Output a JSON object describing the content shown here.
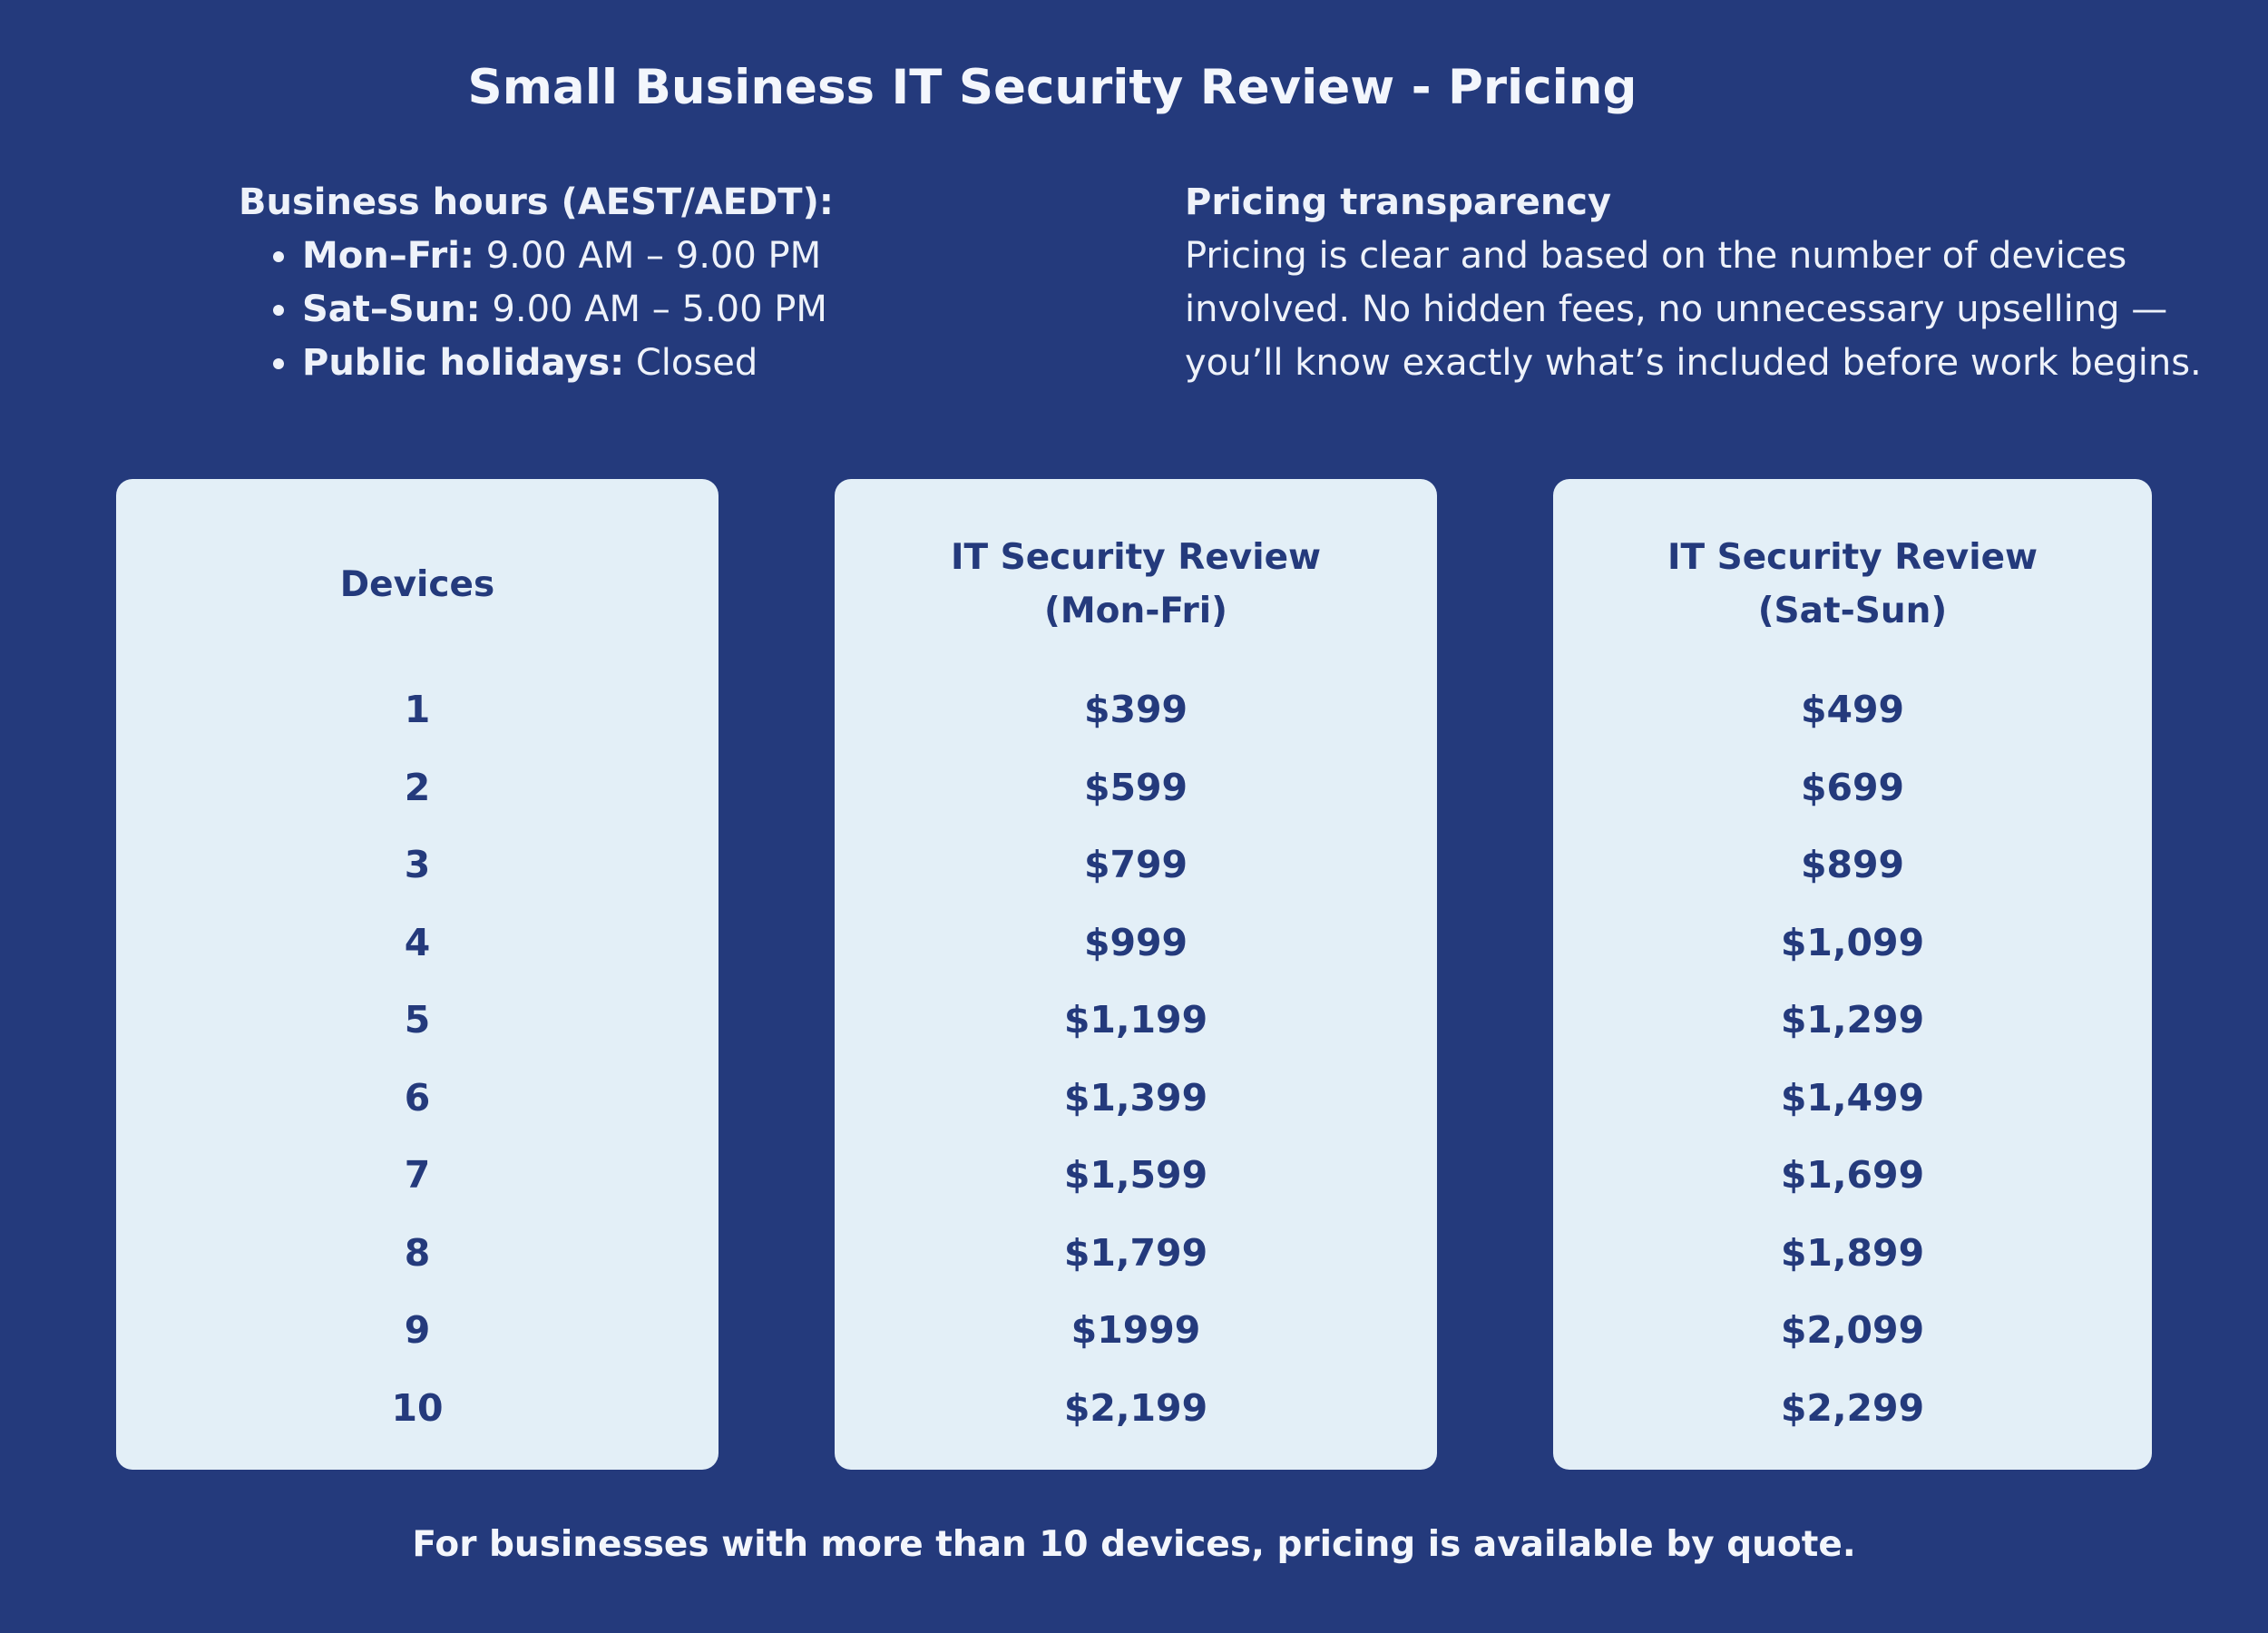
{
  "title": "Small Business IT Security Review - Pricing",
  "hours": {
    "heading": "Business hours (AEST/AEDT):",
    "items": [
      {
        "label": "Mon–Fri:",
        "value": "9.00 AM – 9.00 PM"
      },
      {
        "label": "Sat–Sun:",
        "value": "9.00 AM – 5.00 PM"
      },
      {
        "label": "Public holidays:",
        "value": "Closed"
      }
    ]
  },
  "transparency": {
    "heading": "Pricing transparency",
    "body": "Pricing is clear and based on the number of devices involved. No hidden fees, no unnecessary upselling — you’ll know exactly what’s included before work begins."
  },
  "table": {
    "columns": [
      {
        "header_line1": "Devices",
        "header_line2": ""
      },
      {
        "header_line1": "IT Security Review",
        "header_line2": "(Mon-Fri)"
      },
      {
        "header_line1": "IT Security Review",
        "header_line2": "(Sat-Sun)"
      }
    ],
    "devices": [
      "1",
      "2",
      "3",
      "4",
      "5",
      "6",
      "7",
      "8",
      "9",
      "10"
    ],
    "weekday": [
      "$399",
      "$599",
      "$799",
      "$999",
      "$1,199",
      "$1,399",
      "$1,599",
      "$1,799",
      "$1999",
      "$2,199"
    ],
    "weekend": [
      "$499",
      "$699",
      "$899",
      "$1,099",
      "$1,299",
      "$1,499",
      "$1,699",
      "$1,899",
      "$2,099",
      "$2,299"
    ]
  },
  "footer": "For businesses with more than 10 devices, pricing is available by quote.",
  "colors": {
    "background": "#243a7c",
    "card": "#e3eff7",
    "text_dark": "#243a7c",
    "text_light": "#eef2fa"
  }
}
